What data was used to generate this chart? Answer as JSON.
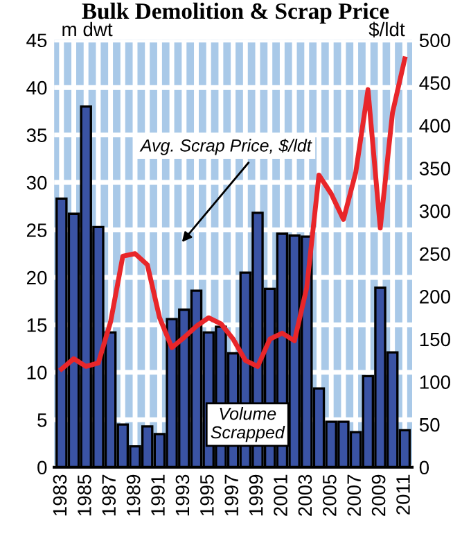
{
  "chart_data": {
    "type": "bar",
    "title": "Bulk Demolition & Scrap Price",
    "ylabel": "m dwt",
    "y2label": "$/ldt",
    "categories": [
      "1983",
      null,
      "1985",
      null,
      "1987",
      null,
      "1989",
      null,
      "1991",
      null,
      "1993",
      null,
      "1995",
      null,
      "1997",
      null,
      "1999",
      null,
      "2001",
      null,
      "2003",
      null,
      "2005",
      null,
      "2007",
      null,
      "2009",
      null,
      "2011"
    ],
    "series": [
      {
        "color": "#3a53a4",
        "values": [
          28.3,
          26.7,
          38,
          25.3,
          14.2,
          4.5,
          2.2,
          4.3,
          3.5,
          15.6,
          16.6,
          18.6,
          14.2,
          14.8,
          12,
          20.5,
          26.8,
          18.8,
          24.6,
          24.4,
          24.3,
          8.3,
          4.8,
          4.8,
          3.7,
          9.6,
          18.9,
          12.1,
          3.9
        ]
      },
      {
        "type": "line",
        "axis": "y2",
        "color": "#e8262a",
        "values": [
          115,
          127,
          118,
          122,
          170,
          247,
          250,
          237,
          175,
          140,
          152,
          165,
          175,
          168,
          150,
          125,
          118,
          150,
          157,
          148,
          210,
          342,
          320,
          290,
          345,
          442,
          280,
          415,
          478
        ]
      }
    ],
    "ylim": [
      0,
      45
    ],
    "yticks": [
      0,
      5,
      10,
      15,
      20,
      25,
      30,
      35,
      40,
      45
    ],
    "y2lim": [
      0,
      500
    ],
    "y2ticks": [
      0,
      50,
      100,
      150,
      200,
      250,
      300,
      350,
      400,
      450,
      500
    ],
    "grid": true,
    "legend": false,
    "annotations": [
      "Avg. Scrap Price, $/ldt",
      "Volume\nScrapped"
    ]
  }
}
